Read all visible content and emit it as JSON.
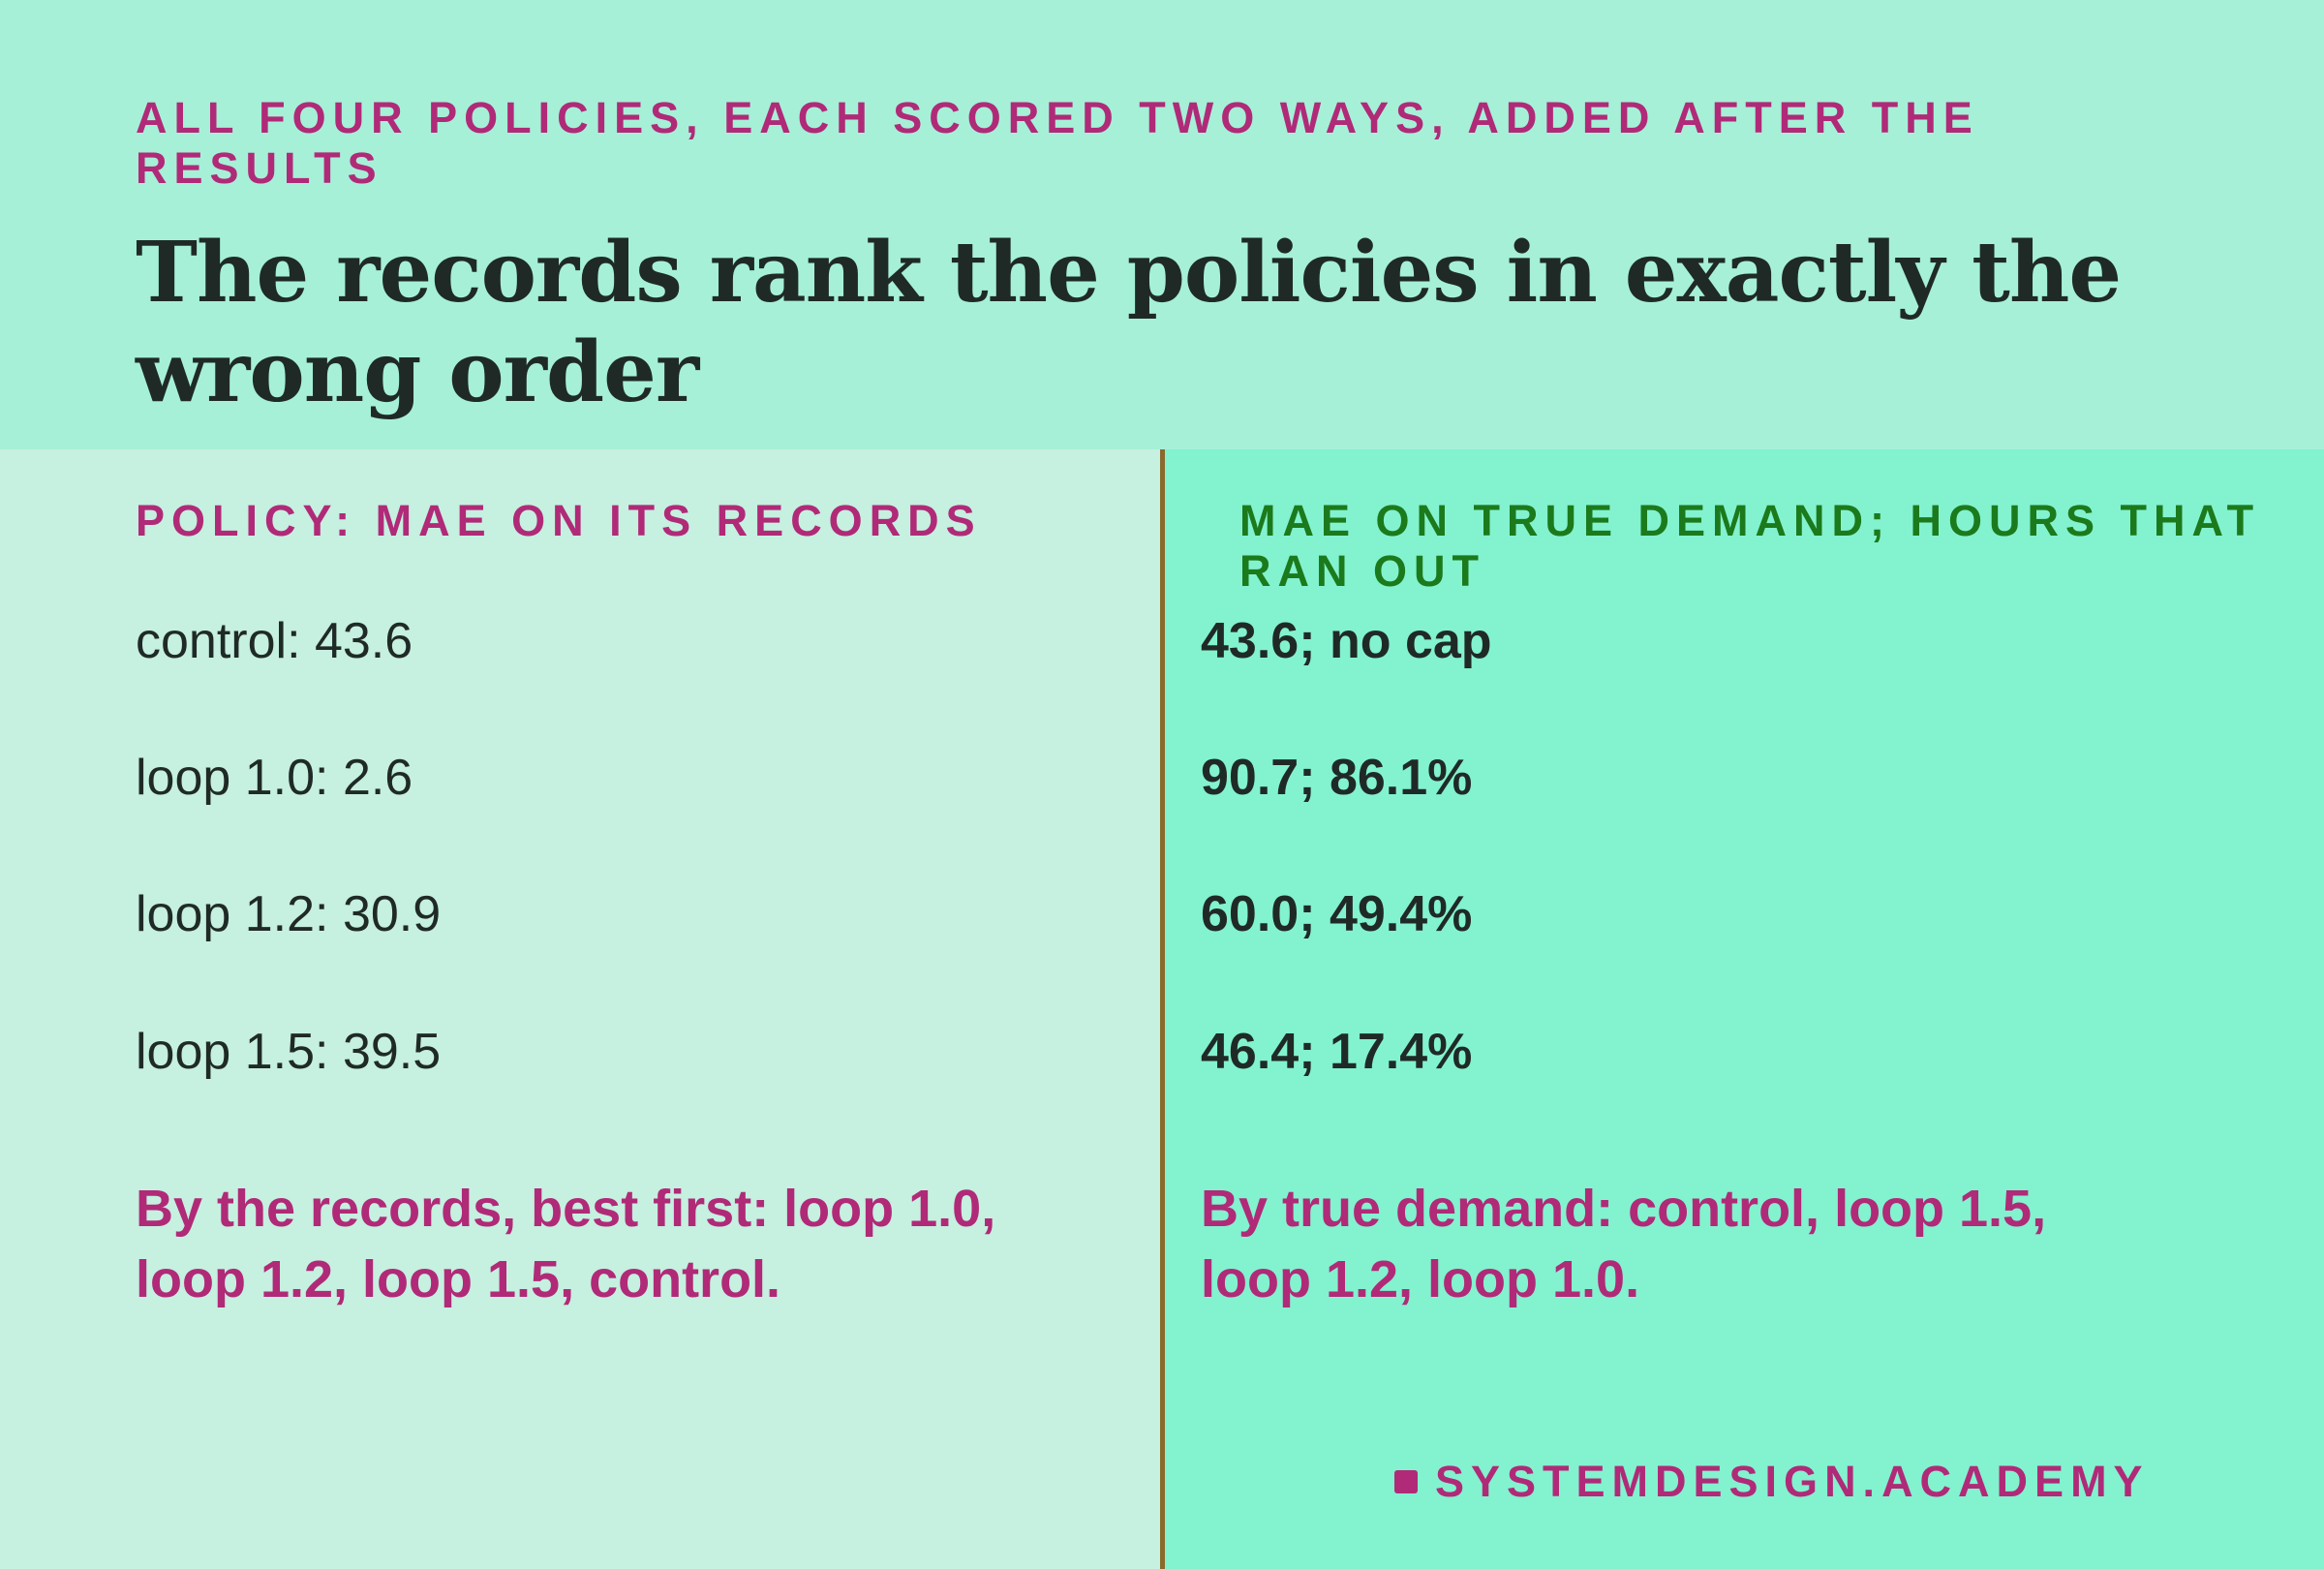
{
  "header": {
    "kicker": "ALL FOUR POLICIES, EACH SCORED TWO WAYS, ADDED AFTER THE RESULTS",
    "title": "The records rank the policies in exactly the wrong order"
  },
  "left_column": {
    "heading": "POLICY: MAE ON ITS RECORDS",
    "rows": [
      "control: 43.6",
      "loop 1.0: 2.6",
      "loop 1.2: 30.9",
      "loop 1.5: 39.5"
    ],
    "summary": "By the records, best first: loop 1.0, loop 1.2, loop 1.5, control."
  },
  "right_column": {
    "heading": "MAE ON TRUE DEMAND; HOURS THAT RAN OUT",
    "rows": [
      "43.6; no cap",
      "90.7; 86.1%",
      "60.0; 49.4%",
      "46.4; 17.4%"
    ],
    "summary": "By true demand: control, loop 1.5, loop 1.2, loop 1.0."
  },
  "brand": {
    "label": "SYSTEMDESIGN.ACADEMY",
    "icon": "square-mark-icon"
  },
  "colors": {
    "header_bg": "#a6f0d8",
    "left_panel_bg": "#c6f0e0",
    "right_panel_bg": "#83f2cf",
    "accent_magenta": "#b02a78",
    "accent_green": "#1b7a1b",
    "divider": "#8a6a2c",
    "text_dark": "#1f2a26"
  }
}
